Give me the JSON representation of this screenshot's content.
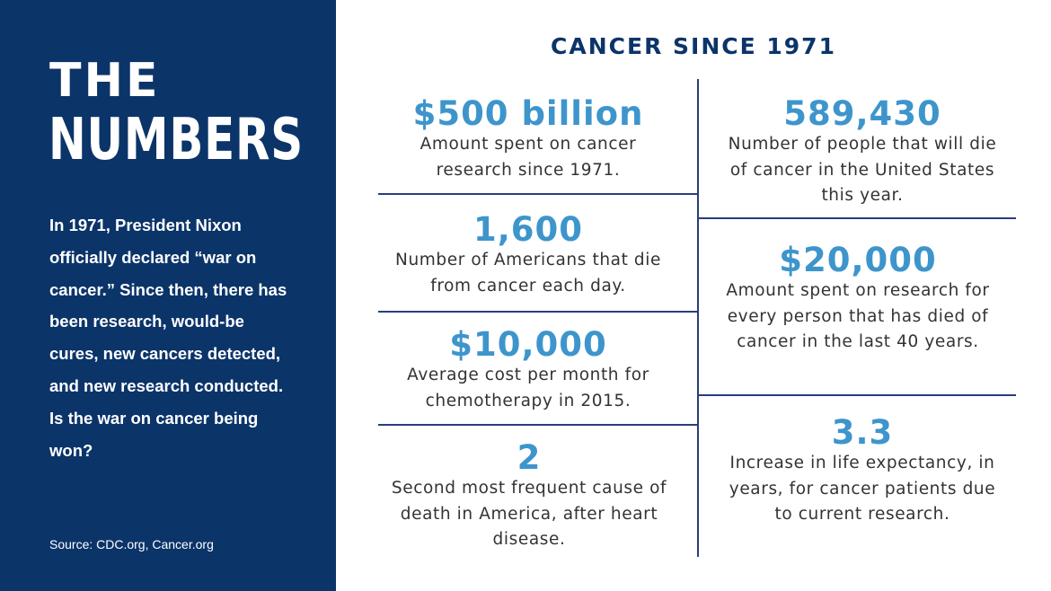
{
  "sidebar": {
    "title_line1": "THE",
    "title_line2": "NUMBERS",
    "intro": "In 1971, President Nixon officially declared “war on cancer.” Since then, there has been research, would-be cures, new cancers detected, and new research conducted. Is the war on cancer being won?",
    "source": "Source: CDC.org, Cancer.org"
  },
  "heading": "CANCER SINCE 1971",
  "left_stats": [
    {
      "value": "$500 billion",
      "description": "Amount spent on cancer research since 1971."
    },
    {
      "value": "1,600",
      "description": "Number of Americans that die from cancer each day."
    },
    {
      "value": "$10,000",
      "description": "Average cost per month for chemotherapy in 2015."
    },
    {
      "value": "2",
      "description": "Second most frequent cause of death in America, after heart disease."
    }
  ],
  "right_stats": [
    {
      "value": "589,430",
      "description": "Number of people that will die of cancer in the United States this year."
    },
    {
      "value": "$20,000",
      "description": "Amount spent on research for every person that has died of cancer in the last 40 years."
    },
    {
      "value": "3.3",
      "description": "Increase in life expectancy, in years, for cancer patients due to current research."
    }
  ],
  "colors": {
    "sidebar_background": "#0b3469",
    "heading_text": "#0b3469",
    "stat_value": "#3d95cc",
    "divider": "#2a3d7c",
    "body_text": "#333333"
  }
}
